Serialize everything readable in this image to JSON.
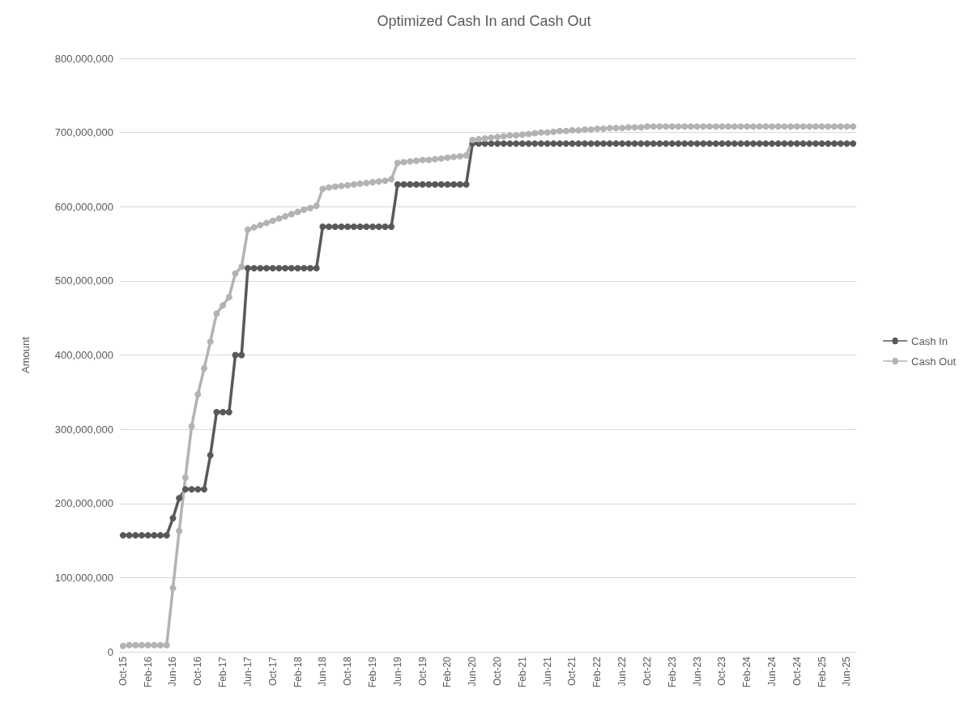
{
  "chart_data": {
    "type": "line",
    "title": "Optimized Cash In and Cash Out",
    "ylabel": "Amount",
    "categories": [
      "Oct-15",
      null,
      null,
      null,
      "Feb-16",
      null,
      null,
      null,
      "Jun-16",
      null,
      null,
      null,
      "Oct-16",
      null,
      null,
      null,
      "Feb-17",
      null,
      null,
      null,
      "Jun-17",
      null,
      null,
      null,
      "Oct-17",
      null,
      null,
      null,
      "Feb-18",
      null,
      null,
      null,
      "Jun-18",
      null,
      null,
      null,
      "Oct-18",
      null,
      null,
      null,
      "Feb-19",
      null,
      null,
      null,
      "Jun-19",
      null,
      null,
      null,
      "Oct-19",
      null,
      null,
      null,
      "Feb-20",
      null,
      null,
      null,
      "Jun-20",
      null,
      null,
      null,
      "Oct-20",
      null,
      null,
      null,
      "Feb-21",
      null,
      null,
      null,
      "Jun-21",
      null,
      null,
      null,
      "Oct-21",
      null,
      null,
      null,
      "Feb-22",
      null,
      null,
      null,
      "Jun-22",
      null,
      null,
      null,
      "Oct-22",
      null,
      null,
      null,
      "Feb-23",
      null,
      null,
      null,
      "Jun-23",
      null,
      null,
      null,
      "Oct-23",
      null,
      null,
      null,
      "Feb-24",
      null,
      null,
      null,
      "Jun-24",
      null,
      null,
      null,
      "Oct-24",
      null,
      null,
      null,
      "Feb-25",
      null,
      null,
      null,
      "Jun-25",
      null
    ],
    "series": [
      {
        "name": "Cash In",
        "color": "#595959",
        "values": [
          157000000,
          157000000,
          157000000,
          157000000,
          157000000,
          157000000,
          157000000,
          157000000,
          180000000,
          207000000,
          219000000,
          219000000,
          219000000,
          219000000,
          265000000,
          323000000,
          323000000,
          323000000,
          400000000,
          400000000,
          517000000,
          517000000,
          517000000,
          517000000,
          517000000,
          517000000,
          517000000,
          517000000,
          517000000,
          517000000,
          517000000,
          517000000,
          573000000,
          573000000,
          573000000,
          573000000,
          573000000,
          573000000,
          573000000,
          573000000,
          573000000,
          573000000,
          573000000,
          573000000,
          630000000,
          630000000,
          630000000,
          630000000,
          630000000,
          630000000,
          630000000,
          630000000,
          630000000,
          630000000,
          630000000,
          630000000,
          685000000,
          685000000,
          685000000,
          685000000,
          685000000,
          685000000,
          685000000,
          685000000,
          685000000,
          685000000,
          685000000,
          685000000,
          685000000,
          685000000,
          685000000,
          685000000,
          685000000,
          685000000,
          685000000,
          685000000,
          685000000,
          685000000,
          685000000,
          685000000,
          685000000,
          685000000,
          685000000,
          685000000,
          685000000,
          685000000,
          685000000,
          685000000,
          685000000,
          685000000,
          685000000,
          685000000,
          685000000,
          685000000,
          685000000,
          685000000,
          685000000,
          685000000,
          685000000,
          685000000,
          685000000,
          685000000,
          685000000,
          685000000,
          685000000,
          685000000,
          685000000,
          685000000,
          685000000,
          685000000,
          685000000,
          685000000,
          685000000,
          685000000,
          685000000,
          685000000,
          685000000,
          685000000
        ]
      },
      {
        "name": "Cash Out",
        "color": "#b3b3b3",
        "values": [
          8000000,
          9000000,
          9000000,
          9000000,
          9000000,
          9000000,
          9000000,
          9000000,
          86000000,
          163000000,
          235000000,
          304000000,
          347000000,
          382000000,
          418000000,
          456000000,
          467000000,
          478000000,
          510000000,
          519000000,
          569000000,
          572000000,
          575000000,
          578000000,
          581000000,
          584000000,
          587000000,
          590000000,
          593000000,
          596000000,
          598000000,
          601000000,
          624000000,
          626000000,
          627000000,
          628000000,
          629000000,
          630000000,
          631000000,
          632000000,
          633000000,
          634000000,
          635000000,
          637000000,
          659000000,
          660000000,
          661000000,
          662000000,
          663000000,
          663000000,
          664000000,
          665000000,
          666000000,
          667000000,
          668000000,
          669000000,
          690000000,
          691000000,
          692000000,
          693000000,
          694000000,
          695000000,
          696000000,
          696000000,
          697000000,
          698000000,
          699000000,
          700000000,
          700000000,
          701000000,
          702000000,
          702000000,
          703000000,
          703000000,
          704000000,
          704000000,
          705000000,
          705000000,
          706000000,
          706000000,
          706000000,
          707000000,
          707000000,
          707000000,
          708000000,
          708000000,
          708000000,
          708000000,
          708000000,
          708000000,
          708000000,
          708000000,
          708000000,
          708000000,
          708000000,
          708000000,
          708000000,
          708000000,
          708000000,
          708000000,
          708000000,
          708000000,
          708000000,
          708000000,
          708000000,
          708000000,
          708000000,
          708000000,
          708000000,
          708000000,
          708000000,
          708000000,
          708000000,
          708000000,
          708000000,
          708000000,
          708000000,
          708000000
        ]
      }
    ],
    "ylim": [
      0,
      800000000
    ],
    "yticks": [
      0,
      {
        "value": 100000000,
        "label": "100,000,000"
      },
      {
        "value": 200000000,
        "label": "200,000,000"
      },
      {
        "value": 300000000,
        "label": "300,000,000"
      },
      {
        "value": 400000000,
        "label": "400,000,000"
      },
      {
        "value": 500000000,
        "label": "500,000,000"
      },
      {
        "value": 600000000,
        "label": "600,000,000"
      },
      {
        "value": 700000000,
        "label": "700,000,000"
      },
      {
        "value": 800000000,
        "label": "800,000,000"
      }
    ],
    "grid": "y",
    "legend": "right",
    "marker": "circle",
    "line_style": "solid"
  }
}
